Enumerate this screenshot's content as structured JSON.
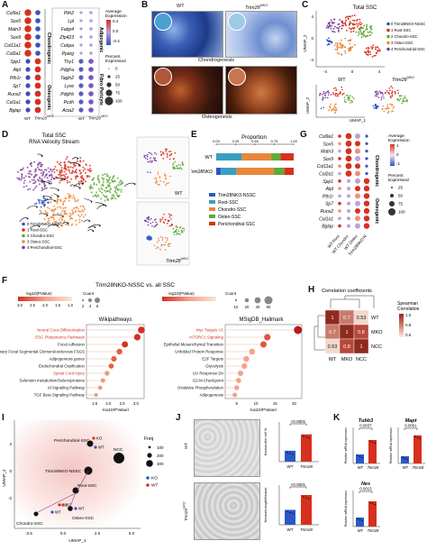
{
  "panels": {
    "A": "A",
    "B": "B",
    "C": "C",
    "D": "D",
    "E": "E",
    "F": "F",
    "G": "G",
    "H": "H",
    "I": "I",
    "J": "J",
    "K": "K"
  },
  "colors": {
    "red": "#d7301f",
    "blue": "#2b58c9",
    "navy": "#1f2f7a",
    "orange": "#e8873a",
    "green": "#63a83a",
    "purple": "#7a3f9b",
    "teal": "#3a9fbf",
    "brown": "#8e2b1f"
  },
  "A": {
    "genes_left": [
      "Col9a1",
      "Sox5",
      "Matn3",
      "Sox9",
      "Col11a1",
      "Col2a1",
      "Spp1",
      "Alpl",
      "Pth1r",
      "Sp7",
      "Runx2",
      "Col1a1",
      "Bglap"
    ],
    "genes_right": [
      "Plin2",
      "Lpl",
      "Fabp4",
      "Zfp423",
      "Cebpa",
      "Pparg",
      "Thy1",
      "Pdgfra",
      "Tagln2",
      "Lyve",
      "Pdgfrb",
      "Pcdh",
      "Acta2"
    ],
    "groups_left": [
      "Chondrogenic",
      "Osteogenic"
    ],
    "groups_right": [
      "Adipogenic",
      "Fibro-Pericyte"
    ],
    "x_wt": "WT",
    "x_ko": "Trim28",
    "x_ko_sup": "NKO",
    "legend_avg_title": "Average\nExpression",
    "legend_avg_ticks": [
      "0.4",
      "0.0",
      "-0.4"
    ],
    "legend_pct_title": "Percent\nExpressed",
    "legend_pct_ticks": [
      "0",
      "25",
      "50",
      "75",
      "100"
    ]
  },
  "B": {
    "wt": "WT",
    "ko": "Trim28",
    "ko_sup": "NKO",
    "row1": "Chondrogenesis",
    "row2": "Osteogenesis"
  },
  "C": {
    "title": "Total SSC",
    "legend": [
      "0 Trim28NKO-NSSC",
      "1 Root-SSC",
      "2 Chondro-SSC",
      "3 Osteo-SSC",
      "4 Perichondrial-SSC"
    ],
    "axis_x": "UMAP_1",
    "axis_y": "UMAP_2",
    "ticks_y": [
      "4",
      "0",
      "-4"
    ],
    "ticks_x": [
      "-4",
      "0",
      "4"
    ],
    "sub_wt": "WT",
    "sub_ko": "Trim28",
    "sub_ko_sup": "NKO"
  },
  "D": {
    "title1": "Total SSC",
    "title2": "RNA Velocity Stream",
    "legend": [
      "0 Trim28NKO-NSSC",
      "1 Root-SSC",
      "2 Chondro-SSC",
      "3 Osteo-SSC",
      "4 Perichondrial-SSC"
    ],
    "sub_wt": "WT",
    "sub_ko": "Trim28",
    "sub_ko_sup": "NKO"
  },
  "E": {
    "title": "Proportion",
    "ticks": [
      "0.00",
      "0.25",
      "0.50",
      "0.75",
      "1.00"
    ],
    "rows": [
      "WT",
      "Trim28NKO"
    ],
    "legend": [
      "Trim28NKO-NSSC",
      "Root-SSC",
      "Chondro-SSC",
      "Osteo-SSC",
      "Perichondrial-SSC"
    ],
    "chart_data": {
      "type": "bar",
      "categories": [
        "WT",
        "Trim28NKO"
      ],
      "series": [
        {
          "name": "Trim28NKO-NSSC",
          "values": [
            0.0,
            0.06
          ]
        },
        {
          "name": "Root-SSC",
          "values": [
            0.33,
            0.2
          ]
        },
        {
          "name": "Chondro-SSC",
          "values": [
            0.38,
            0.48
          ]
        },
        {
          "name": "Osteo-SSC",
          "values": [
            0.12,
            0.14
          ]
        },
        {
          "name": "Perichondrial-SSC",
          "values": [
            0.17,
            0.12
          ]
        }
      ]
    }
  },
  "F": {
    "title": "Trim28NKO-NSSC vs. all SSC",
    "logp_label": "-log10(PValue)",
    "logp_ticks": [
      "3.0",
      "2.5",
      "2.0",
      "1.5",
      "1.0"
    ],
    "count_label": "Count",
    "count_ticks": [
      "2",
      "4",
      "6"
    ],
    "count_ticks2": [
      "10",
      "20",
      "40",
      "60"
    ],
    "left_title": "Wikipathways",
    "right_title": "MSigDB_Hallmark",
    "left_terms": [
      "Neural Crest Differentiation",
      "ESC Pluripotency Pathways",
      "Focal Adhesion",
      "Primary Focal Segmental Glomerulosclerosis FSGS",
      "Adipogenesis genes",
      "Endochondral Ossification",
      "Spinal Cord Injury",
      "Selenium metabolism/Selenoproteins",
      "Id Signaling Pathway",
      "TGF Beta Signaling Pathway"
    ],
    "right_terms": [
      "Myc Targets V1",
      "mTORC1 Signaling",
      "Epithelial Mesenchymal Transition",
      "Unfolded Protein Response",
      "E2F Targets",
      "Glycolysis",
      "UV Response Dn",
      "G2-M Checkpoint",
      "Oxidative Phosphorylation",
      "Adipogenesis"
    ],
    "left_x_ticks": [
      "1.5",
      "2.0",
      "2.5",
      "3.0"
    ],
    "right_x_ticks": [
      "5",
      "10",
      "15",
      "20"
    ],
    "left_values": [
      3.2,
      3.05,
      2.6,
      2.4,
      2.2,
      2.1,
      1.95,
      1.8,
      1.7,
      1.55
    ],
    "right_values": [
      21,
      13,
      12,
      9,
      7.5,
      7,
      6,
      5.5,
      5,
      4.5
    ]
  },
  "G": {
    "genes": [
      "Col9a1",
      "Sox5",
      "Matn3",
      "Sox9",
      "Col11a1",
      "Col2a1",
      "Spp1",
      "Alpl",
      "Pth1r",
      "Sp7",
      "Runx2",
      "Col1a1",
      "Bglap"
    ],
    "groups": [
      "Chondrogenic",
      "Osteogenic"
    ],
    "cols": [
      "WT Root",
      "WT Chondro",
      "WT Osteo",
      "Trim28NKO-N"
    ],
    "legend_avg_title": "Average\nExpression",
    "legend_avg_ticks": [
      "1",
      "0",
      "-1"
    ],
    "legend_pct_title": "Percent\nExpressed",
    "legend_pct_ticks": [
      "25",
      "50",
      "75",
      "100"
    ]
  },
  "H": {
    "title": "Correlation coefficients",
    "legend_title": "Spearman\nCorrelation",
    "legend_ticks": [
      "1.0",
      "0.8",
      "0.6"
    ],
    "rows": [
      "WT",
      "MKO",
      "NCC"
    ],
    "cols": [
      "WT",
      "MKO",
      "NCC"
    ],
    "cells": [
      [
        "1",
        "0.7",
        "0.53"
      ],
      [
        "0.7",
        "1",
        "0.8"
      ],
      [
        "0.53",
        "0.8",
        "1"
      ]
    ]
  },
  "I": {
    "axis_x": "UMAP_1",
    "axis_y": "UMAP_2",
    "freq_label": "Freq",
    "freq_ticks": [
      "100",
      "200",
      "300"
    ],
    "legend": [
      "KO",
      "WT"
    ],
    "labels": [
      "Perichondrial-SSC",
      "KO",
      "WT",
      "NCC",
      "Trim28NKO-NSSC",
      "Root-SSC",
      "KO",
      "WT",
      "KO",
      "WT",
      "Osteo-SSC",
      "Chondro-SSC"
    ],
    "ticks_x": [
      "-2.5",
      "0.0",
      "2.5",
      "5.0"
    ],
    "ticks_y": [
      "2",
      "0",
      "-2"
    ]
  },
  "J": {
    "wt": "WT",
    "ko": "Trim28",
    "ko_sup": "NKO",
    "p1": "<0.0001",
    "p2": "<0.0001",
    "y1": "Neuron-like cell %",
    "y2": "Neuron/Length/Neuron",
    "chart_data": [
      {
        "type": "bar",
        "categories": [
          "WT",
          "Trim28NKO"
        ],
        "values": [
          22,
          55
        ],
        "ylim": [
          0,
          80
        ]
      },
      {
        "type": "bar",
        "categories": [
          "WT",
          "Trim28NKO"
        ],
        "values": [
          30,
          60
        ],
        "ylim": [
          0,
          80
        ]
      }
    ]
  },
  "K": {
    "g1": "Tubb3",
    "g2": "Mapt",
    "g3": "Nes",
    "p1": "0.0037",
    "p2": "0.0001",
    "p3": "0.0013",
    "ylabel": "Relative mRNA expression",
    "wt": "WT",
    "ko": "Trim28",
    "ko_sup": "NKO",
    "chart_data": [
      {
        "type": "bar",
        "categories": [
          "WT",
          "Trim28NKO"
        ],
        "values": [
          1.0,
          2.6
        ],
        "ylim": [
          0,
          4
        ]
      },
      {
        "type": "bar",
        "categories": [
          "WT",
          "Trim28NKO"
        ],
        "values": [
          1.0,
          3.9
        ],
        "ylim": [
          0,
          5
        ]
      },
      {
        "type": "bar",
        "categories": [
          "WT",
          "Trim28NKO"
        ],
        "values": [
          1.0,
          2.8
        ],
        "ylim": [
          0,
          4
        ]
      }
    ]
  }
}
